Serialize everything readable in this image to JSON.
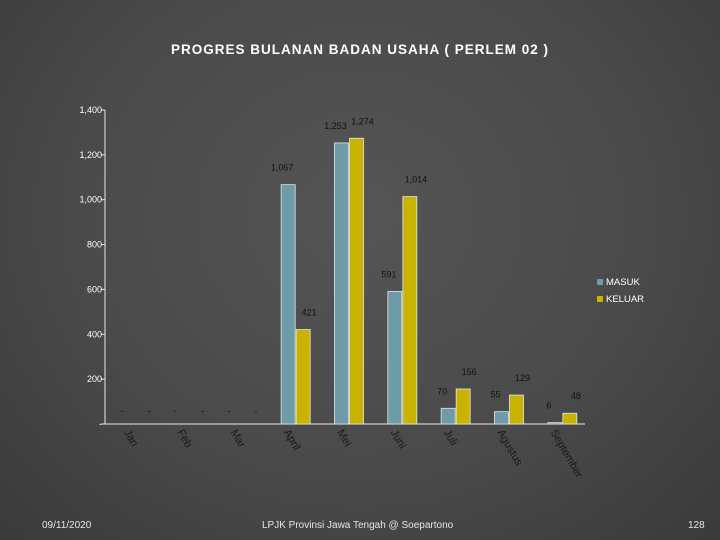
{
  "slide": {
    "title": "PROGRES BULANAN BADAN USAHA ( PERLEM 02 )",
    "date": "09/11/2020",
    "footer_center": "LPJK Provinsi Jawa Tengah @ Soepartono",
    "page_number": "128"
  },
  "chart_data": {
    "type": "bar",
    "title": "",
    "xlabel": "",
    "ylabel": "",
    "categories": [
      "Jan",
      "Feb",
      "Mar",
      "April",
      "Mei",
      "Juni",
      "Juli",
      "Agustus",
      "September"
    ],
    "ylim": [
      0,
      1400
    ],
    "yticks": [
      0,
      200,
      400,
      600,
      800,
      1000,
      1200,
      1400
    ],
    "ytick_labels": [
      "-",
      "200",
      "400",
      "600",
      "800",
      "1,000",
      "1,200",
      "1,400"
    ],
    "grid": false,
    "legend_position": "right",
    "series": [
      {
        "name": "MASUK",
        "color": "#6f9aa8",
        "values": [
          0,
          0,
          0,
          1067,
          1253,
          591,
          70,
          55,
          6
        ],
        "labels": [
          "-",
          "-",
          "-",
          "1,067",
          "1,253",
          "591",
          "70",
          "55",
          "6"
        ]
      },
      {
        "name": "KELUAR",
        "color": "#c8b400",
        "values": [
          0,
          0,
          0,
          421,
          1274,
          1014,
          156,
          129,
          48
        ],
        "labels": [
          "-",
          "-",
          "-",
          "421",
          "1,274",
          "1,014",
          "156",
          "129",
          "48"
        ]
      }
    ]
  }
}
